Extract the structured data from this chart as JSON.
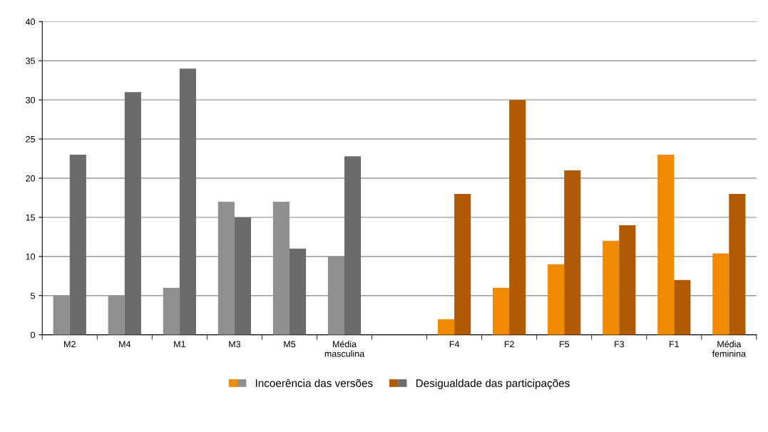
{
  "chart_data": {
    "type": "bar",
    "categories": [
      "M2",
      "M4",
      "M1",
      "M3",
      "M5",
      "Média\nmasculina",
      null,
      "F4",
      "F2",
      "F5",
      "F3",
      "F1",
      "Média\nfeminina"
    ],
    "series": [
      {
        "name": "Incoerência das versões",
        "colors": [
          "#8f8f8f",
          "#8f8f8f",
          "#8f8f8f",
          "#8f8f8f",
          "#8f8f8f",
          "#8f8f8f",
          "#8f8f8f",
          "#f08a00",
          "#f08a00",
          "#f08a00",
          "#f08a00",
          "#f08a00",
          "#f08a00"
        ],
        "values": [
          5,
          5,
          6,
          17,
          17,
          10,
          null,
          2,
          6,
          9,
          12,
          23,
          10.4
        ]
      },
      {
        "name": "Desigualdade das participações",
        "colors": [
          "#6b6b6b",
          "#6b6b6b",
          "#6b6b6b",
          "#6b6b6b",
          "#6b6b6b",
          "#6b6b6b",
          "#6b6b6b",
          "#b05a06",
          "#b05a06",
          "#b05a06",
          "#b05a06",
          "#b05a06",
          "#b05a06"
        ],
        "values": [
          23,
          31,
          34,
          15,
          11,
          22.8,
          null,
          18,
          30,
          21,
          14,
          7,
          18
        ]
      }
    ],
    "ylim": [
      0,
      40
    ],
    "yticks": [
      0,
      5,
      10,
      15,
      20,
      25,
      30,
      35,
      40
    ],
    "grid": "y",
    "legend": "bottom"
  }
}
